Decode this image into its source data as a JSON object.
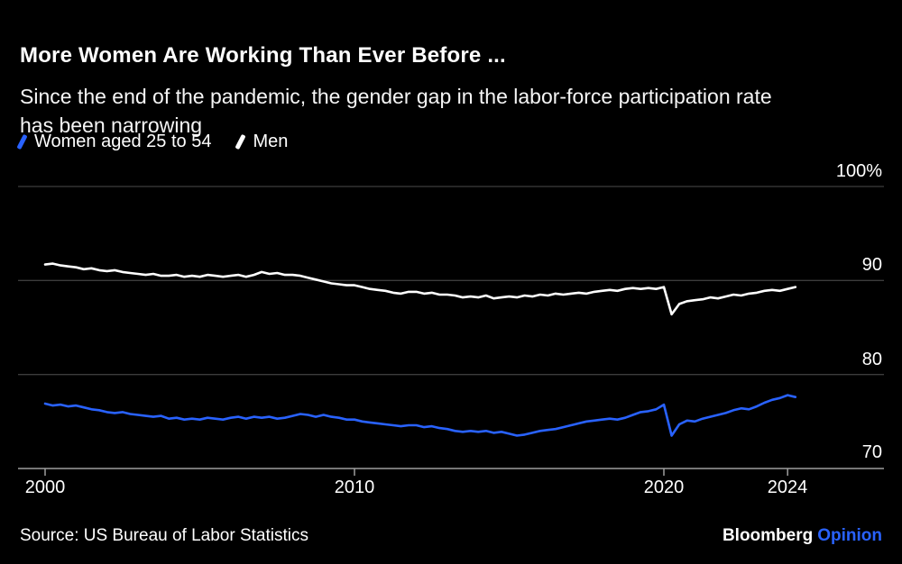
{
  "header": {
    "title": "More Women Are Working Than Ever Before ...",
    "subtitle": "Since the end of the pandemic, the gender gap in the labor-force participation rate has been narrowing"
  },
  "legend": {
    "items": [
      {
        "key": "women",
        "label": "Women aged 25 to 54",
        "color": "#2962ff"
      },
      {
        "key": "men",
        "label": "Men",
        "color": "#ffffff"
      }
    ]
  },
  "chart_data": {
    "type": "line",
    "title": "More Women Are Working Than Ever Before ...",
    "unit": "%",
    "x_range": [
      2000,
      2024.25
    ],
    "y_range": [
      70,
      100
    ],
    "grid": "horizontal",
    "legend_position": "top-left",
    "y_ticks": [
      {
        "value": 100,
        "label": "100%"
      },
      {
        "value": 90,
        "label": "90"
      },
      {
        "value": 80,
        "label": "80"
      },
      {
        "value": 70,
        "label": "70"
      }
    ],
    "x_ticks": [
      {
        "value": 2000,
        "label": "2000"
      },
      {
        "value": 2010,
        "label": "2010"
      },
      {
        "value": 2020,
        "label": "2020"
      },
      {
        "value": 2024,
        "label": "2024"
      }
    ],
    "series": [
      {
        "key": "women",
        "name": "Women aged 25 to 54",
        "color": "#2962ff",
        "x_start": 2000,
        "x_step": 0.25,
        "values": [
          76.9,
          76.7,
          76.8,
          76.6,
          76.7,
          76.5,
          76.3,
          76.2,
          76.0,
          75.9,
          76.0,
          75.8,
          75.7,
          75.6,
          75.5,
          75.6,
          75.3,
          75.4,
          75.2,
          75.3,
          75.2,
          75.4,
          75.3,
          75.2,
          75.4,
          75.5,
          75.3,
          75.5,
          75.4,
          75.5,
          75.3,
          75.4,
          75.6,
          75.8,
          75.7,
          75.5,
          75.7,
          75.5,
          75.4,
          75.2,
          75.2,
          75.0,
          74.9,
          74.8,
          74.7,
          74.6,
          74.5,
          74.6,
          74.6,
          74.4,
          74.5,
          74.3,
          74.2,
          74.0,
          73.9,
          74.0,
          73.9,
          74.0,
          73.8,
          73.9,
          73.7,
          73.5,
          73.6,
          73.8,
          74.0,
          74.1,
          74.2,
          74.4,
          74.6,
          74.8,
          75.0,
          75.1,
          75.2,
          75.3,
          75.2,
          75.4,
          75.7,
          76.0,
          76.1,
          76.3,
          76.8,
          73.5,
          74.7,
          75.1,
          75.0,
          75.3,
          75.5,
          75.7,
          75.9,
          76.2,
          76.4,
          76.3,
          76.6,
          77.0,
          77.3,
          77.5,
          77.8,
          77.6
        ]
      },
      {
        "key": "men",
        "name": "Men",
        "color": "#ffffff",
        "x_start": 2000,
        "x_step": 0.25,
        "values": [
          91.7,
          91.8,
          91.6,
          91.5,
          91.4,
          91.2,
          91.3,
          91.1,
          91.0,
          91.1,
          90.9,
          90.8,
          90.7,
          90.6,
          90.7,
          90.5,
          90.5,
          90.6,
          90.4,
          90.5,
          90.4,
          90.6,
          90.5,
          90.4,
          90.5,
          90.6,
          90.4,
          90.6,
          90.9,
          90.7,
          90.8,
          90.6,
          90.6,
          90.5,
          90.3,
          90.1,
          89.9,
          89.7,
          89.6,
          89.5,
          89.5,
          89.3,
          89.1,
          89.0,
          88.9,
          88.7,
          88.6,
          88.8,
          88.8,
          88.6,
          88.7,
          88.5,
          88.5,
          88.4,
          88.2,
          88.3,
          88.2,
          88.4,
          88.1,
          88.2,
          88.3,
          88.2,
          88.4,
          88.3,
          88.5,
          88.4,
          88.6,
          88.5,
          88.6,
          88.7,
          88.6,
          88.8,
          88.9,
          89.0,
          88.9,
          89.1,
          89.2,
          89.1,
          89.2,
          89.1,
          89.3,
          86.4,
          87.5,
          87.8,
          87.9,
          88.0,
          88.2,
          88.1,
          88.3,
          88.5,
          88.4,
          88.6,
          88.7,
          88.9,
          89.0,
          88.9,
          89.1,
          89.3
        ]
      }
    ],
    "colors": {
      "grid": "#3c3c3c",
      "axis": "#9e9e9e",
      "background": "#000000"
    }
  },
  "footer": {
    "source": "Source: US Bureau of Labor Statistics",
    "brand": "Bloomberg",
    "brand_suffix": "Opinion",
    "brand_suffix_color": "#2962ff"
  }
}
